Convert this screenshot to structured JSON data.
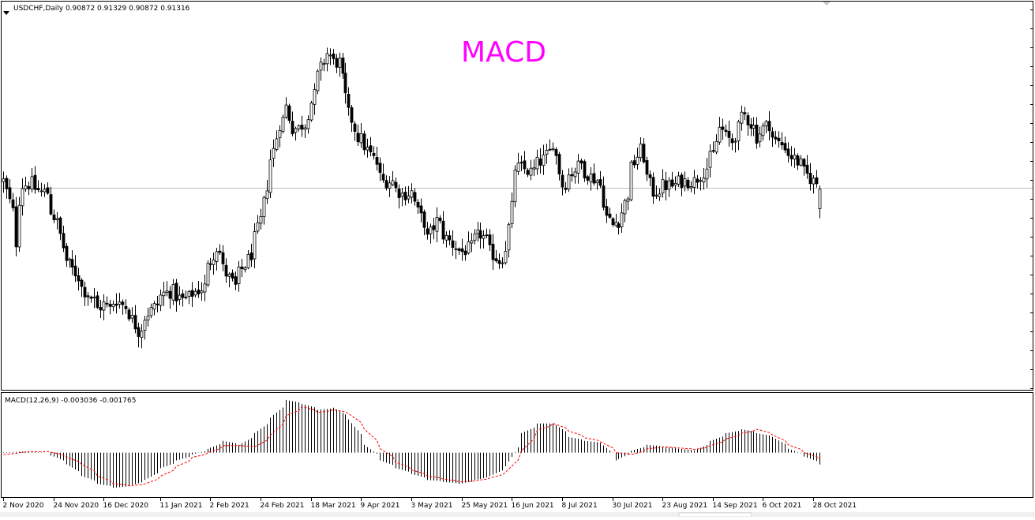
{
  "header": {
    "symbol_info": "USDCHF,Daily  0.90872 0.91329 0.90872 0.91316",
    "overlay_title": "MACD"
  },
  "indicator": {
    "label": "MACD(12,26,9) -0.003036 -0.001765"
  },
  "colors": {
    "candle": "#000000",
    "signal_line": "#ff0000",
    "overlay_title": "#ff00ff",
    "frame": "#000000",
    "hline": "#c0c0c0",
    "background": "#ffffff"
  },
  "chart_data": [
    {
      "type": "candlestick",
      "title": "USDCHF,Daily",
      "last_ohlc": {
        "open": 0.90872,
        "high": 0.91329,
        "low": 0.90872,
        "close": 0.91316
      },
      "x_tick_labels": [
        "2 Nov 2020",
        "24 Nov 2020",
        "16 Dec 2020",
        "11 Jan 2021",
        "2 Feb 2021",
        "24 Feb 2021",
        "18 Mar 2021",
        "9 Apr 2021",
        "3 May 2021",
        "25 May 2021",
        "16 Jun 2021",
        "8 Jul 2021",
        "30 Jul 2021",
        "23 Aug 2021",
        "14 Sep 2021",
        "6 Oct 2021",
        "28 Oct 2021"
      ],
      "ylim": [
        0.8676,
        0.9556
      ],
      "reference_line": 0.9134,
      "close_path": [
        {
          "d": "2 Nov 2020",
          "c": 0.915
        },
        {
          "d": "5 Nov 2020",
          "c": 0.908
        },
        {
          "d": "6 Nov 2020",
          "c": 0.901
        },
        {
          "d": "10 Nov 2020",
          "c": 0.914
        },
        {
          "d": "13 Nov 2020",
          "c": 0.9145
        },
        {
          "d": "18 Nov 2020",
          "c": 0.9125
        },
        {
          "d": "20 Nov 2020",
          "c": 0.9125
        },
        {
          "d": "25 Nov 2020",
          "c": 0.9055
        },
        {
          "d": "27 Nov 2020",
          "c": 0.9
        },
        {
          "d": "2 Dec 2020",
          "c": 0.895
        },
        {
          "d": "8 Dec 2020",
          "c": 0.89
        },
        {
          "d": "14 Dec 2020",
          "c": 0.886
        },
        {
          "d": "16 Dec 2020",
          "c": 0.887
        },
        {
          "d": "18 Dec 2020",
          "c": 0.886
        },
        {
          "d": "22 Dec 2020",
          "c": 0.888
        },
        {
          "d": "28 Dec 2020",
          "c": 0.885
        },
        {
          "d": "31 Dec 2020",
          "c": 0.881
        },
        {
          "d": "5 Jan 2021",
          "c": 0.885
        },
        {
          "d": "8 Jan 2021",
          "c": 0.887
        },
        {
          "d": "12 Jan 2021",
          "c": 0.8895
        },
        {
          "d": "15 Jan 2021",
          "c": 0.89
        },
        {
          "d": "20 Jan 2021",
          "c": 0.888
        },
        {
          "d": "25 Jan 2021",
          "c": 0.8895
        },
        {
          "d": "29 Jan 2021",
          "c": 0.891
        },
        {
          "d": "2 Feb 2021",
          "c": 0.897
        },
        {
          "d": "4 Feb 2021",
          "c": 0.9
        },
        {
          "d": "9 Feb 2021",
          "c": 0.894
        },
        {
          "d": "12 Feb 2021",
          "c": 0.891
        },
        {
          "d": "17 Feb 2021",
          "c": 0.896
        },
        {
          "d": "22 Feb 2021",
          "c": 0.902
        },
        {
          "d": "24 Feb 2021",
          "c": 0.906
        },
        {
          "d": "26 Feb 2021",
          "c": 0.914
        },
        {
          "d": "2 Mar 2021",
          "c": 0.922
        },
        {
          "d": "4 Mar 2021",
          "c": 0.928
        },
        {
          "d": "8 Mar 2021",
          "c": 0.932
        },
        {
          "d": "10 Mar 2021",
          "c": 0.927
        },
        {
          "d": "12 Mar 2021",
          "c": 0.927
        },
        {
          "d": "16 Mar 2021",
          "c": 0.928
        },
        {
          "d": "18 Mar 2021",
          "c": 0.933
        },
        {
          "d": "22 Mar 2021",
          "c": 0.939
        },
        {
          "d": "25 Mar 2021",
          "c": 0.944
        },
        {
          "d": "29 Mar 2021",
          "c": 0.942
        },
        {
          "d": "31 Mar 2021",
          "c": 0.942
        },
        {
          "d": "2 Apr 2021",
          "c": 0.934
        },
        {
          "d": "6 Apr 2021",
          "c": 0.929
        },
        {
          "d": "8 Apr 2021",
          "c": 0.925
        },
        {
          "d": "12 Apr 2021",
          "c": 0.923
        },
        {
          "d": "15 Apr 2021",
          "c": 0.92
        },
        {
          "d": "20 Apr 2021",
          "c": 0.915
        },
        {
          "d": "23 Apr 2021",
          "c": 0.915
        },
        {
          "d": "28 Apr 2021",
          "c": 0.912
        },
        {
          "d": "3 May 2021",
          "c": 0.9125
        },
        {
          "d": "5 May 2021",
          "c": 0.908
        },
        {
          "d": "10 May 2021",
          "c": 0.902
        },
        {
          "d": "13 May 2021",
          "c": 0.906
        },
        {
          "d": "18 May 2021",
          "c": 0.902
        },
        {
          "d": "21 May 2021",
          "c": 0.9
        },
        {
          "d": "25 May 2021",
          "c": 0.899
        },
        {
          "d": "28 May 2021",
          "c": 0.9
        },
        {
          "d": "2 Jun 2021",
          "c": 0.903
        },
        {
          "d": "7 Jun 2021",
          "c": 0.899
        },
        {
          "d": "10 Jun 2021",
          "c": 0.897
        },
        {
          "d": "14 Jun 2021",
          "c": 0.9
        },
        {
          "d": "16 Jun 2021",
          "c": 0.909
        },
        {
          "d": "17 Jun 2021",
          "c": 0.918
        },
        {
          "d": "21 Jun 2021",
          "c": 0.918
        },
        {
          "d": "24 Jun 2021",
          "c": 0.917
        },
        {
          "d": "30 Jun 2021",
          "c": 0.92
        },
        {
          "d": "5 Jul 2021",
          "c": 0.924
        },
        {
          "d": "8 Jul 2021",
          "c": 0.914
        },
        {
          "d": "13 Jul 2021",
          "c": 0.917
        },
        {
          "d": "16 Jul 2021",
          "c": 0.919
        },
        {
          "d": "21 Jul 2021",
          "c": 0.916
        },
        {
          "d": "26 Jul 2021",
          "c": 0.914
        },
        {
          "d": "28 Jul 2021",
          "c": 0.907
        },
        {
          "d": "30 Jul 2021",
          "c": 0.905
        },
        {
          "d": "3 Aug 2021",
          "c": 0.906
        },
        {
          "d": "5 Aug 2021",
          "c": 0.91
        },
        {
          "d": "9 Aug 2021",
          "c": 0.918
        },
        {
          "d": "12 Aug 2021",
          "c": 0.922
        },
        {
          "d": "16 Aug 2021",
          "c": 0.916
        },
        {
          "d": "18 Aug 2021",
          "c": 0.9125
        },
        {
          "d": "23 Aug 2021",
          "c": 0.914
        },
        {
          "d": "26 Aug 2021",
          "c": 0.914
        },
        {
          "d": "31 Aug 2021",
          "c": 0.915
        },
        {
          "d": "6 Sep 2021",
          "c": 0.915
        },
        {
          "d": "10 Sep 2021",
          "c": 0.918
        },
        {
          "d": "14 Sep 2021",
          "c": 0.921
        },
        {
          "d": "16 Sep 2021",
          "c": 0.927
        },
        {
          "d": "20 Sep 2021",
          "c": 0.925
        },
        {
          "d": "22 Sep 2021",
          "c": 0.924
        },
        {
          "d": "24 Sep 2021",
          "c": 0.927
        },
        {
          "d": "28 Sep 2021",
          "c": 0.93
        },
        {
          "d": "30 Sep 2021",
          "c": 0.928
        },
        {
          "d": "4 Oct 2021",
          "c": 0.925
        },
        {
          "d": "6 Oct 2021",
          "c": 0.927
        },
        {
          "d": "8 Oct 2021",
          "c": 0.928
        },
        {
          "d": "12 Oct 2021",
          "c": 0.924
        },
        {
          "d": "15 Oct 2021",
          "c": 0.923
        },
        {
          "d": "20 Oct 2021",
          "c": 0.92
        },
        {
          "d": "25 Oct 2021",
          "c": 0.917
        },
        {
          "d": "28 Oct 2021",
          "c": 0.915
        },
        {
          "d": "1 Nov 2021",
          "c": 0.9132
        }
      ]
    },
    {
      "type": "bar",
      "title": "MACD(12,26,9)",
      "series": [
        {
          "name": "MACD",
          "style": "histogram"
        },
        {
          "name": "Signal",
          "style": "dashed-line"
        }
      ],
      "last_values": {
        "macd": -0.003036,
        "signal": -0.001765
      },
      "ylim": [
        -0.0112,
        0.0151
      ],
      "points": [
        {
          "d": "2 Nov 2020",
          "macd": 0.0001,
          "signal": -0.0005
        },
        {
          "d": "13 Nov 2020",
          "macd": 0.0003,
          "signal": 0.0003
        },
        {
          "d": "20 Nov 2020",
          "macd": 0.0,
          "signal": 0.0003
        },
        {
          "d": "24 Nov 2020",
          "macd": -0.001,
          "signal": 0.0
        },
        {
          "d": "30 Nov 2020",
          "macd": -0.003,
          "signal": -0.0012
        },
        {
          "d": "7 Dec 2020",
          "macd": -0.006,
          "signal": -0.003
        },
        {
          "d": "14 Dec 2020",
          "macd": -0.008,
          "signal": -0.006
        },
        {
          "d": "21 Dec 2020",
          "macd": -0.009,
          "signal": -0.008
        },
        {
          "d": "28 Dec 2020",
          "macd": -0.0085,
          "signal": -0.0085
        },
        {
          "d": "4 Jan 2021",
          "macd": -0.007,
          "signal": -0.008
        },
        {
          "d": "11 Jan 2021",
          "macd": -0.004,
          "signal": -0.006
        },
        {
          "d": "18 Jan 2021",
          "macd": -0.002,
          "signal": -0.0035
        },
        {
          "d": "25 Jan 2021",
          "macd": -0.0005,
          "signal": -0.0012
        },
        {
          "d": "1 Feb 2021",
          "macd": 0.001,
          "signal": 0.0
        },
        {
          "d": "8 Feb 2021",
          "macd": 0.003,
          "signal": 0.0018
        },
        {
          "d": "15 Feb 2021",
          "macd": 0.002,
          "signal": 0.0018
        },
        {
          "d": "22 Feb 2021",
          "macd": 0.005,
          "signal": 0.0015
        },
        {
          "d": "1 Mar 2021",
          "macd": 0.009,
          "signal": 0.0045
        },
        {
          "d": "8 Mar 2021",
          "macd": 0.0135,
          "signal": 0.0095
        },
        {
          "d": "15 Mar 2021",
          "macd": 0.0125,
          "signal": 0.0118
        },
        {
          "d": "22 Mar 2021",
          "macd": 0.011,
          "signal": 0.0103
        },
        {
          "d": "29 Mar 2021",
          "macd": 0.0115,
          "signal": 0.011
        },
        {
          "d": "5 Apr 2021",
          "macd": 0.0085,
          "signal": 0.01
        },
        {
          "d": "12 Apr 2021",
          "macd": 0.002,
          "signal": 0.006
        },
        {
          "d": "19 Apr 2021",
          "macd": -0.002,
          "signal": 0.001
        },
        {
          "d": "26 Apr 2021",
          "macd": -0.004,
          "signal": -0.0025
        },
        {
          "d": "3 May 2021",
          "macd": -0.0055,
          "signal": -0.0045
        },
        {
          "d": "10 May 2021",
          "macd": -0.007,
          "signal": -0.006
        },
        {
          "d": "17 May 2021",
          "macd": -0.0075,
          "signal": -0.0068
        },
        {
          "d": "24 May 2021",
          "macd": -0.008,
          "signal": -0.0075
        },
        {
          "d": "31 May 2021",
          "macd": -0.007,
          "signal": -0.0072
        },
        {
          "d": "7 Jun 2021",
          "macd": -0.006,
          "signal": -0.0065
        },
        {
          "d": "14 Jun 2021",
          "macd": -0.0035,
          "signal": -0.005
        },
        {
          "d": "21 Jun 2021",
          "macd": 0.005,
          "signal": 0.0005
        },
        {
          "d": "28 Jun 2021",
          "macd": 0.0075,
          "signal": 0.0058
        },
        {
          "d": "5 Jul 2021",
          "macd": 0.0075,
          "signal": 0.0075
        },
        {
          "d": "12 Jul 2021",
          "macd": 0.004,
          "signal": 0.0055
        },
        {
          "d": "19 Jul 2021",
          "macd": 0.003,
          "signal": 0.0038
        },
        {
          "d": "26 Jul 2021",
          "macd": 0.0025,
          "signal": 0.0028
        },
        {
          "d": "2 Aug 2021",
          "macd": -0.002,
          "signal": 0.0
        },
        {
          "d": "9 Aug 2021",
          "macd": 0.0005,
          "signal": -0.0005
        },
        {
          "d": "16 Aug 2021",
          "macd": 0.002,
          "signal": 0.001
        },
        {
          "d": "23 Aug 2021",
          "macd": 0.0015,
          "signal": 0.0015
        },
        {
          "d": "30 Aug 2021",
          "macd": 0.001,
          "signal": 0.0012
        },
        {
          "d": "6 Sep 2021",
          "macd": 0.0005,
          "signal": 0.0008
        },
        {
          "d": "13 Sep 2021",
          "macd": 0.003,
          "signal": 0.0018
        },
        {
          "d": "20 Sep 2021",
          "macd": 0.005,
          "signal": 0.0035
        },
        {
          "d": "27 Sep 2021",
          "macd": 0.006,
          "signal": 0.005
        },
        {
          "d": "4 Oct 2021",
          "macd": 0.005,
          "signal": 0.006
        },
        {
          "d": "11 Oct 2021",
          "macd": 0.004,
          "signal": 0.0045
        },
        {
          "d": "18 Oct 2021",
          "macd": 0.001,
          "signal": 0.002
        },
        {
          "d": "25 Oct 2021",
          "macd": -0.001,
          "signal": 0.0
        },
        {
          "d": "1 Nov 2021",
          "macd": -0.003,
          "signal": -0.0018
        }
      ]
    }
  ]
}
